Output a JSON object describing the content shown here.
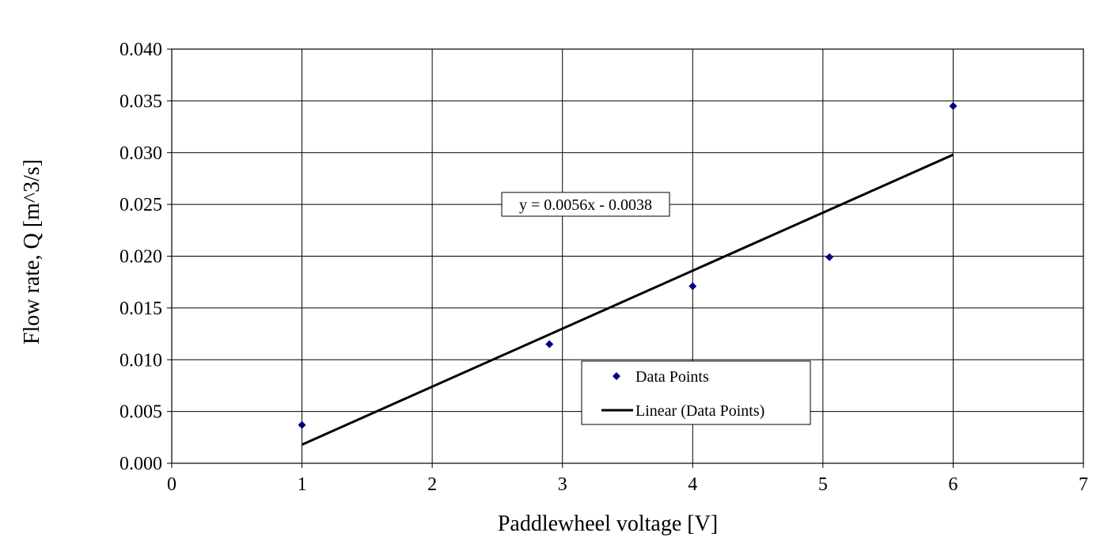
{
  "chart_data": {
    "type": "scatter",
    "xlabel": "Paddlewheel voltage [V]",
    "ylabel": "Flow rate, Q [m^3/s]",
    "xlim": [
      0,
      7
    ],
    "ylim": [
      0,
      0.04
    ],
    "x_ticks": [
      "0",
      "1",
      "2",
      "3",
      "4",
      "5",
      "6",
      "7"
    ],
    "y_ticks": [
      "0.000",
      "0.005",
      "0.010",
      "0.015",
      "0.020",
      "0.025",
      "0.030",
      "0.035",
      "0.040"
    ],
    "grid": true,
    "series": [
      {
        "name": "Data Points",
        "marker": "diamond",
        "color": "#000080",
        "x": [
          1.0,
          2.9,
          4.0,
          5.05,
          6.0
        ],
        "y": [
          0.0037,
          0.0115,
          0.0171,
          0.0199,
          0.0345
        ]
      }
    ],
    "trendline": {
      "name": "Linear (Data Points)",
      "slope": 0.0056,
      "intercept": -0.0038,
      "x_range": [
        1,
        6
      ],
      "color": "#000000",
      "equation_label": "y = 0.0056x - 0.0038"
    },
    "legend": {
      "placement": "center-right",
      "entries": [
        "Data Points",
        "Linear (Data Points)"
      ]
    }
  }
}
